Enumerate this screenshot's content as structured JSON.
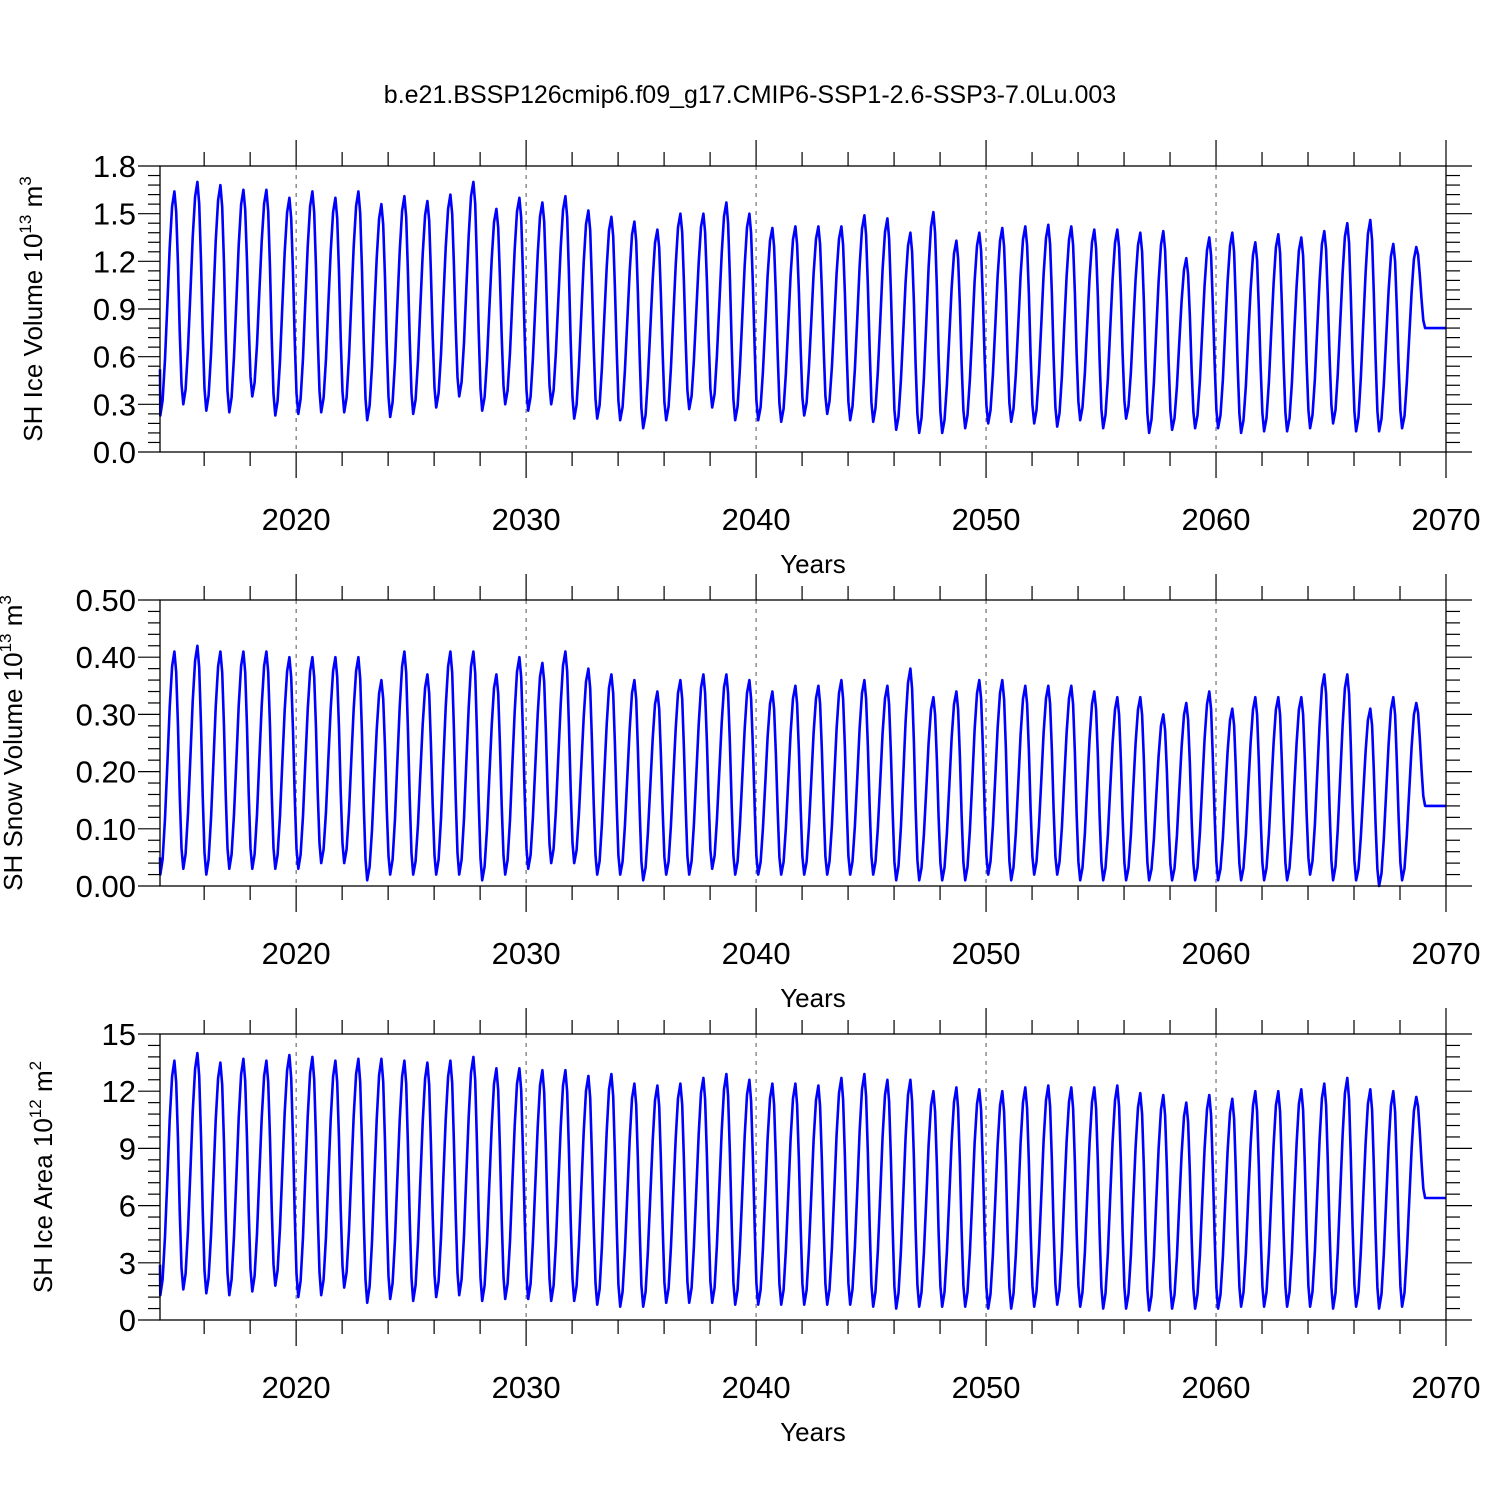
{
  "title": "b.e21.BSSP126cmip6.f09_g17.CMIP6-SSP1-2.6-SSP3-7.0Lu.003",
  "chart_data": [
    {
      "type": "line",
      "name": "sh-ice-volume",
      "title": "b.e21.BSSP126cmip6.f09_g17.CMIP6-SSP1-2.6-SSP3-7.0Lu.003",
      "ylabel_main": "SH Ice Volume 10",
      "ylabel_exp": "13",
      "ylabel_unit": " m",
      "ylabel_unit_exp": "3",
      "xlabel": "Years",
      "xlim": [
        2014.08,
        2070.0
      ],
      "ylim": [
        0.0,
        1.8
      ],
      "yticks": [
        "0.0",
        "0.3",
        "0.6",
        "0.9",
        "1.2",
        "1.5",
        "1.8"
      ],
      "ytick_values": [
        0.0,
        0.3,
        0.6,
        0.9,
        1.2,
        1.5,
        1.8
      ],
      "xticks": [
        "2020",
        "2030",
        "2040",
        "2050",
        "2060",
        "2070"
      ],
      "xtick_values": [
        2020,
        2030,
        2040,
        2050,
        2060,
        2070
      ],
      "series_name": "SH ice volume (monthly)",
      "color": "#0000ff",
      "start": 0.52,
      "end": 0.78,
      "annual_max": [
        1.64,
        1.7,
        1.68,
        1.65,
        1.65,
        1.6,
        1.64,
        1.6,
        1.64,
        1.56,
        1.61,
        1.58,
        1.62,
        1.7,
        1.53,
        1.6,
        1.57,
        1.61,
        1.52,
        1.48,
        1.45,
        1.4,
        1.5,
        1.5,
        1.57,
        1.5,
        1.41,
        1.42,
        1.42,
        1.42,
        1.49,
        1.47,
        1.38,
        1.51,
        1.33,
        1.38,
        1.41,
        1.42,
        1.43,
        1.42,
        1.4,
        1.4,
        1.38,
        1.39,
        1.22,
        1.35,
        1.38,
        1.32,
        1.37,
        1.35,
        1.39,
        1.44,
        1.46,
        1.31,
        1.29
      ],
      "annual_min": [
        0.23,
        0.3,
        0.26,
        0.25,
        0.35,
        0.23,
        0.24,
        0.25,
        0.25,
        0.2,
        0.22,
        0.24,
        0.28,
        0.35,
        0.26,
        0.3,
        0.26,
        0.3,
        0.21,
        0.21,
        0.2,
        0.15,
        0.2,
        0.27,
        0.28,
        0.2,
        0.2,
        0.19,
        0.23,
        0.24,
        0.2,
        0.19,
        0.14,
        0.12,
        0.12,
        0.15,
        0.18,
        0.19,
        0.18,
        0.16,
        0.2,
        0.15,
        0.21,
        0.12,
        0.14,
        0.15,
        0.15,
        0.12,
        0.13,
        0.13,
        0.15,
        0.18,
        0.13,
        0.13,
        0.15
      ]
    },
    {
      "type": "line",
      "name": "sh-snow-volume",
      "ylabel_main": "SH Snow Volume 10",
      "ylabel_exp": "13",
      "ylabel_unit": " m",
      "ylabel_unit_exp": "3",
      "xlabel": "Years",
      "xlim": [
        2014.08,
        2070.0
      ],
      "ylim": [
        0.0,
        0.5
      ],
      "yticks": [
        "0.00",
        "0.10",
        "0.20",
        "0.30",
        "0.40",
        "0.50"
      ],
      "ytick_values": [
        0.0,
        0.1,
        0.2,
        0.3,
        0.4,
        0.5
      ],
      "xticks": [
        "2020",
        "2030",
        "2040",
        "2050",
        "2060",
        "2070"
      ],
      "xtick_values": [
        2020,
        2030,
        2040,
        2050,
        2060,
        2070
      ],
      "series_name": "SH snow volume (monthly)",
      "color": "#0000ff",
      "start": 0.05,
      "end": 0.14,
      "annual_max": [
        0.41,
        0.42,
        0.41,
        0.41,
        0.41,
        0.4,
        0.4,
        0.4,
        0.4,
        0.36,
        0.41,
        0.37,
        0.41,
        0.41,
        0.37,
        0.4,
        0.39,
        0.41,
        0.38,
        0.37,
        0.36,
        0.34,
        0.36,
        0.37,
        0.37,
        0.36,
        0.34,
        0.35,
        0.35,
        0.36,
        0.36,
        0.35,
        0.38,
        0.33,
        0.34,
        0.36,
        0.36,
        0.35,
        0.35,
        0.35,
        0.34,
        0.33,
        0.33,
        0.3,
        0.32,
        0.34,
        0.31,
        0.33,
        0.33,
        0.33,
        0.37,
        0.37,
        0.31,
        0.33,
        0.32
      ],
      "annual_min": [
        0.02,
        0.03,
        0.02,
        0.03,
        0.03,
        0.03,
        0.03,
        0.04,
        0.04,
        0.01,
        0.02,
        0.02,
        0.02,
        0.02,
        0.01,
        0.02,
        0.03,
        0.04,
        0.04,
        0.02,
        0.02,
        0.01,
        0.02,
        0.02,
        0.03,
        0.02,
        0.02,
        0.02,
        0.02,
        0.02,
        0.02,
        0.02,
        0.01,
        0.01,
        0.01,
        0.01,
        0.02,
        0.01,
        0.02,
        0.02,
        0.01,
        0.01,
        0.01,
        0.01,
        0.01,
        0.01,
        0.01,
        0.01,
        0.01,
        0.01,
        0.02,
        0.01,
        0.01,
        0.0,
        0.01
      ]
    },
    {
      "type": "line",
      "name": "sh-ice-area",
      "ylabel_main": "SH Ice Area 10",
      "ylabel_exp": "12",
      "ylabel_unit": " m",
      "ylabel_unit_exp": "2",
      "xlabel": "Years",
      "xlim": [
        2014.08,
        2070.0
      ],
      "ylim": [
        0,
        15
      ],
      "yticks": [
        "0",
        "3",
        "6",
        "9",
        "12",
        "15"
      ],
      "ytick_values": [
        0,
        3,
        6,
        9,
        12,
        15
      ],
      "xticks": [
        "2020",
        "2030",
        "2040",
        "2050",
        "2060",
        "2070"
      ],
      "xtick_values": [
        2020,
        2030,
        2040,
        2050,
        2060,
        2070
      ],
      "series_name": "SH ice area (monthly)",
      "color": "#0000ff",
      "start": 2.9,
      "end": 6.4,
      "annual_max": [
        13.6,
        14.0,
        13.5,
        13.7,
        13.6,
        13.9,
        13.8,
        13.6,
        13.7,
        13.7,
        13.6,
        13.5,
        13.6,
        13.8,
        13.2,
        13.2,
        13.1,
        13.1,
        12.8,
        12.9,
        12.4,
        12.3,
        12.4,
        12.7,
        12.9,
        12.6,
        12.4,
        12.4,
        12.3,
        12.7,
        12.9,
        12.6,
        12.6,
        12.0,
        12.2,
        12.1,
        12.0,
        12.2,
        12.3,
        12.2,
        12.2,
        12.3,
        11.9,
        11.8,
        11.4,
        11.8,
        11.6,
        12.0,
        12.0,
        12.1,
        12.4,
        12.7,
        12.1,
        12.0,
        11.7
      ],
      "annual_min": [
        1.3,
        1.6,
        1.4,
        1.3,
        1.5,
        1.8,
        1.2,
        1.3,
        1.7,
        0.9,
        1.1,
        1.0,
        1.2,
        1.3,
        1.0,
        1.1,
        1.1,
        1.0,
        1.0,
        0.8,
        0.7,
        0.7,
        0.9,
        0.9,
        0.9,
        0.8,
        0.8,
        0.8,
        0.8,
        0.8,
        0.8,
        0.7,
        0.6,
        0.7,
        0.7,
        0.7,
        0.6,
        0.6,
        0.7,
        0.8,
        0.7,
        0.6,
        0.6,
        0.5,
        0.6,
        0.6,
        0.6,
        0.7,
        0.7,
        0.7,
        0.7,
        0.6,
        0.7,
        0.6,
        0.7
      ]
    }
  ]
}
